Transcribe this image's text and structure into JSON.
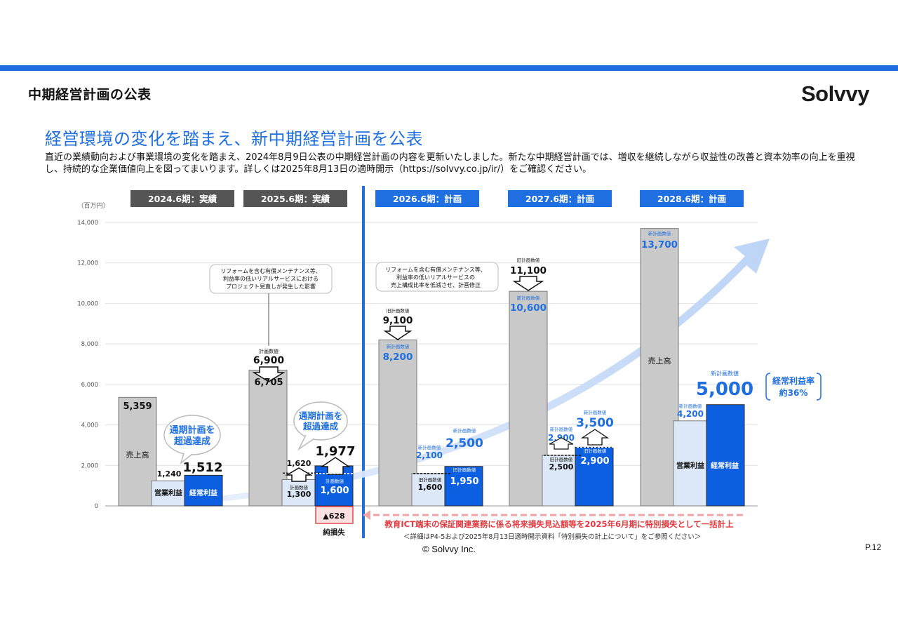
{
  "slide": {
    "section_title": "中期経営計画の公表",
    "logo": "Solvvy",
    "headline": "経営環境の変化を踏まえ、新中期経営計画を公表",
    "description": "直近の業績動向および事業環境の変化を踏まえ、2024年8月9日公表の中期経営計画の内容を更新いたしました。新たな中期経営計画では、増収を継続しながら収益性の改善と資本効率の向上を重視し、持続的な企業価値向上を図ってまいります。詳しくは2025年8月13日の適時開示（https://solvvy.co.jp/ir/）をご確認ください。",
    "footer_note": "＜詳細はP4-5および2025年8月13日適時開示資料「特別損失の計上について」をご参照ください＞",
    "copyright": "© Solvvy Inc.",
    "page": "P.12"
  },
  "chart_data": {
    "type": "bar",
    "unit_label": "（百万円）",
    "ylim": [
      0,
      14000
    ],
    "yticks": [
      "0",
      "2,000",
      "4,000",
      "6,000",
      "8,000",
      "10,000",
      "12,000",
      "14,000"
    ],
    "periods": [
      "2024.6期：実績",
      "2025.6期：実績",
      "2026.6期：計画",
      "2027.6期：計画",
      "2028.6期：計画"
    ],
    "series_names": {
      "sales": "売上高",
      "op": "営業利益",
      "ord": "経常利益"
    },
    "sales": [
      5359,
      6705,
      8200,
      10600,
      13700
    ],
    "operating_profit": [
      1240,
      1300,
      1600,
      2500,
      4200
    ],
    "ordinary_profit": [
      1512,
      1977,
      1950,
      2900,
      5000
    ],
    "net_loss": -628,
    "labels": {
      "sales": [
        "5,359",
        "6,705",
        "8,200",
        "10,600",
        "13,700"
      ],
      "op": [
        "1,240",
        "1,300",
        "1,600",
        "2,500",
        "4,200"
      ],
      "ord": [
        "1,512",
        "1,977",
        "1,950",
        "2,900",
        "5,000"
      ],
      "plan_sales_2025": "6,900",
      "plan_op_2025": "1,620",
      "plan_ord_2025": "1,600",
      "old_sales_2026": "9,100",
      "old_sales_2027": "11,100",
      "old_op_2026": "2,100",
      "old_op_2027": "2,900",
      "new_ord_2026": "2,500",
      "new_ord_2027": "3,500",
      "net_loss": "▲628"
    },
    "small_labels": {
      "plan": "計画数値",
      "old_plan": "旧計画数値",
      "new_plan": "新計画数値",
      "net_loss_label": "純損失"
    },
    "callouts": {
      "exceed": "通期計画を\n超過達成",
      "note_2025": "リフォームを含む有償メンテナンス等、\n利益率の低いリアルサービスにおける\nプロジェクト見直しが発生した影響",
      "note_2026": "リフォームを含む有償メンテナンス等、\n利益率の低いリアルサービスの\n売上構成比率を低減させ、計画修正",
      "margin": "経常利益率\n約36%",
      "special_loss": "教育ICT端末の保証関連業務に係る将来損失見込額等を2025年6月期に特別損失として一括計上"
    },
    "colors": {
      "sales": "#c9c9c9",
      "op": "#dce8f7",
      "ord": "#0b5fe0",
      "accent": "#1f6fe0",
      "loss": "#e8484f",
      "actual_label": "#555555"
    }
  }
}
